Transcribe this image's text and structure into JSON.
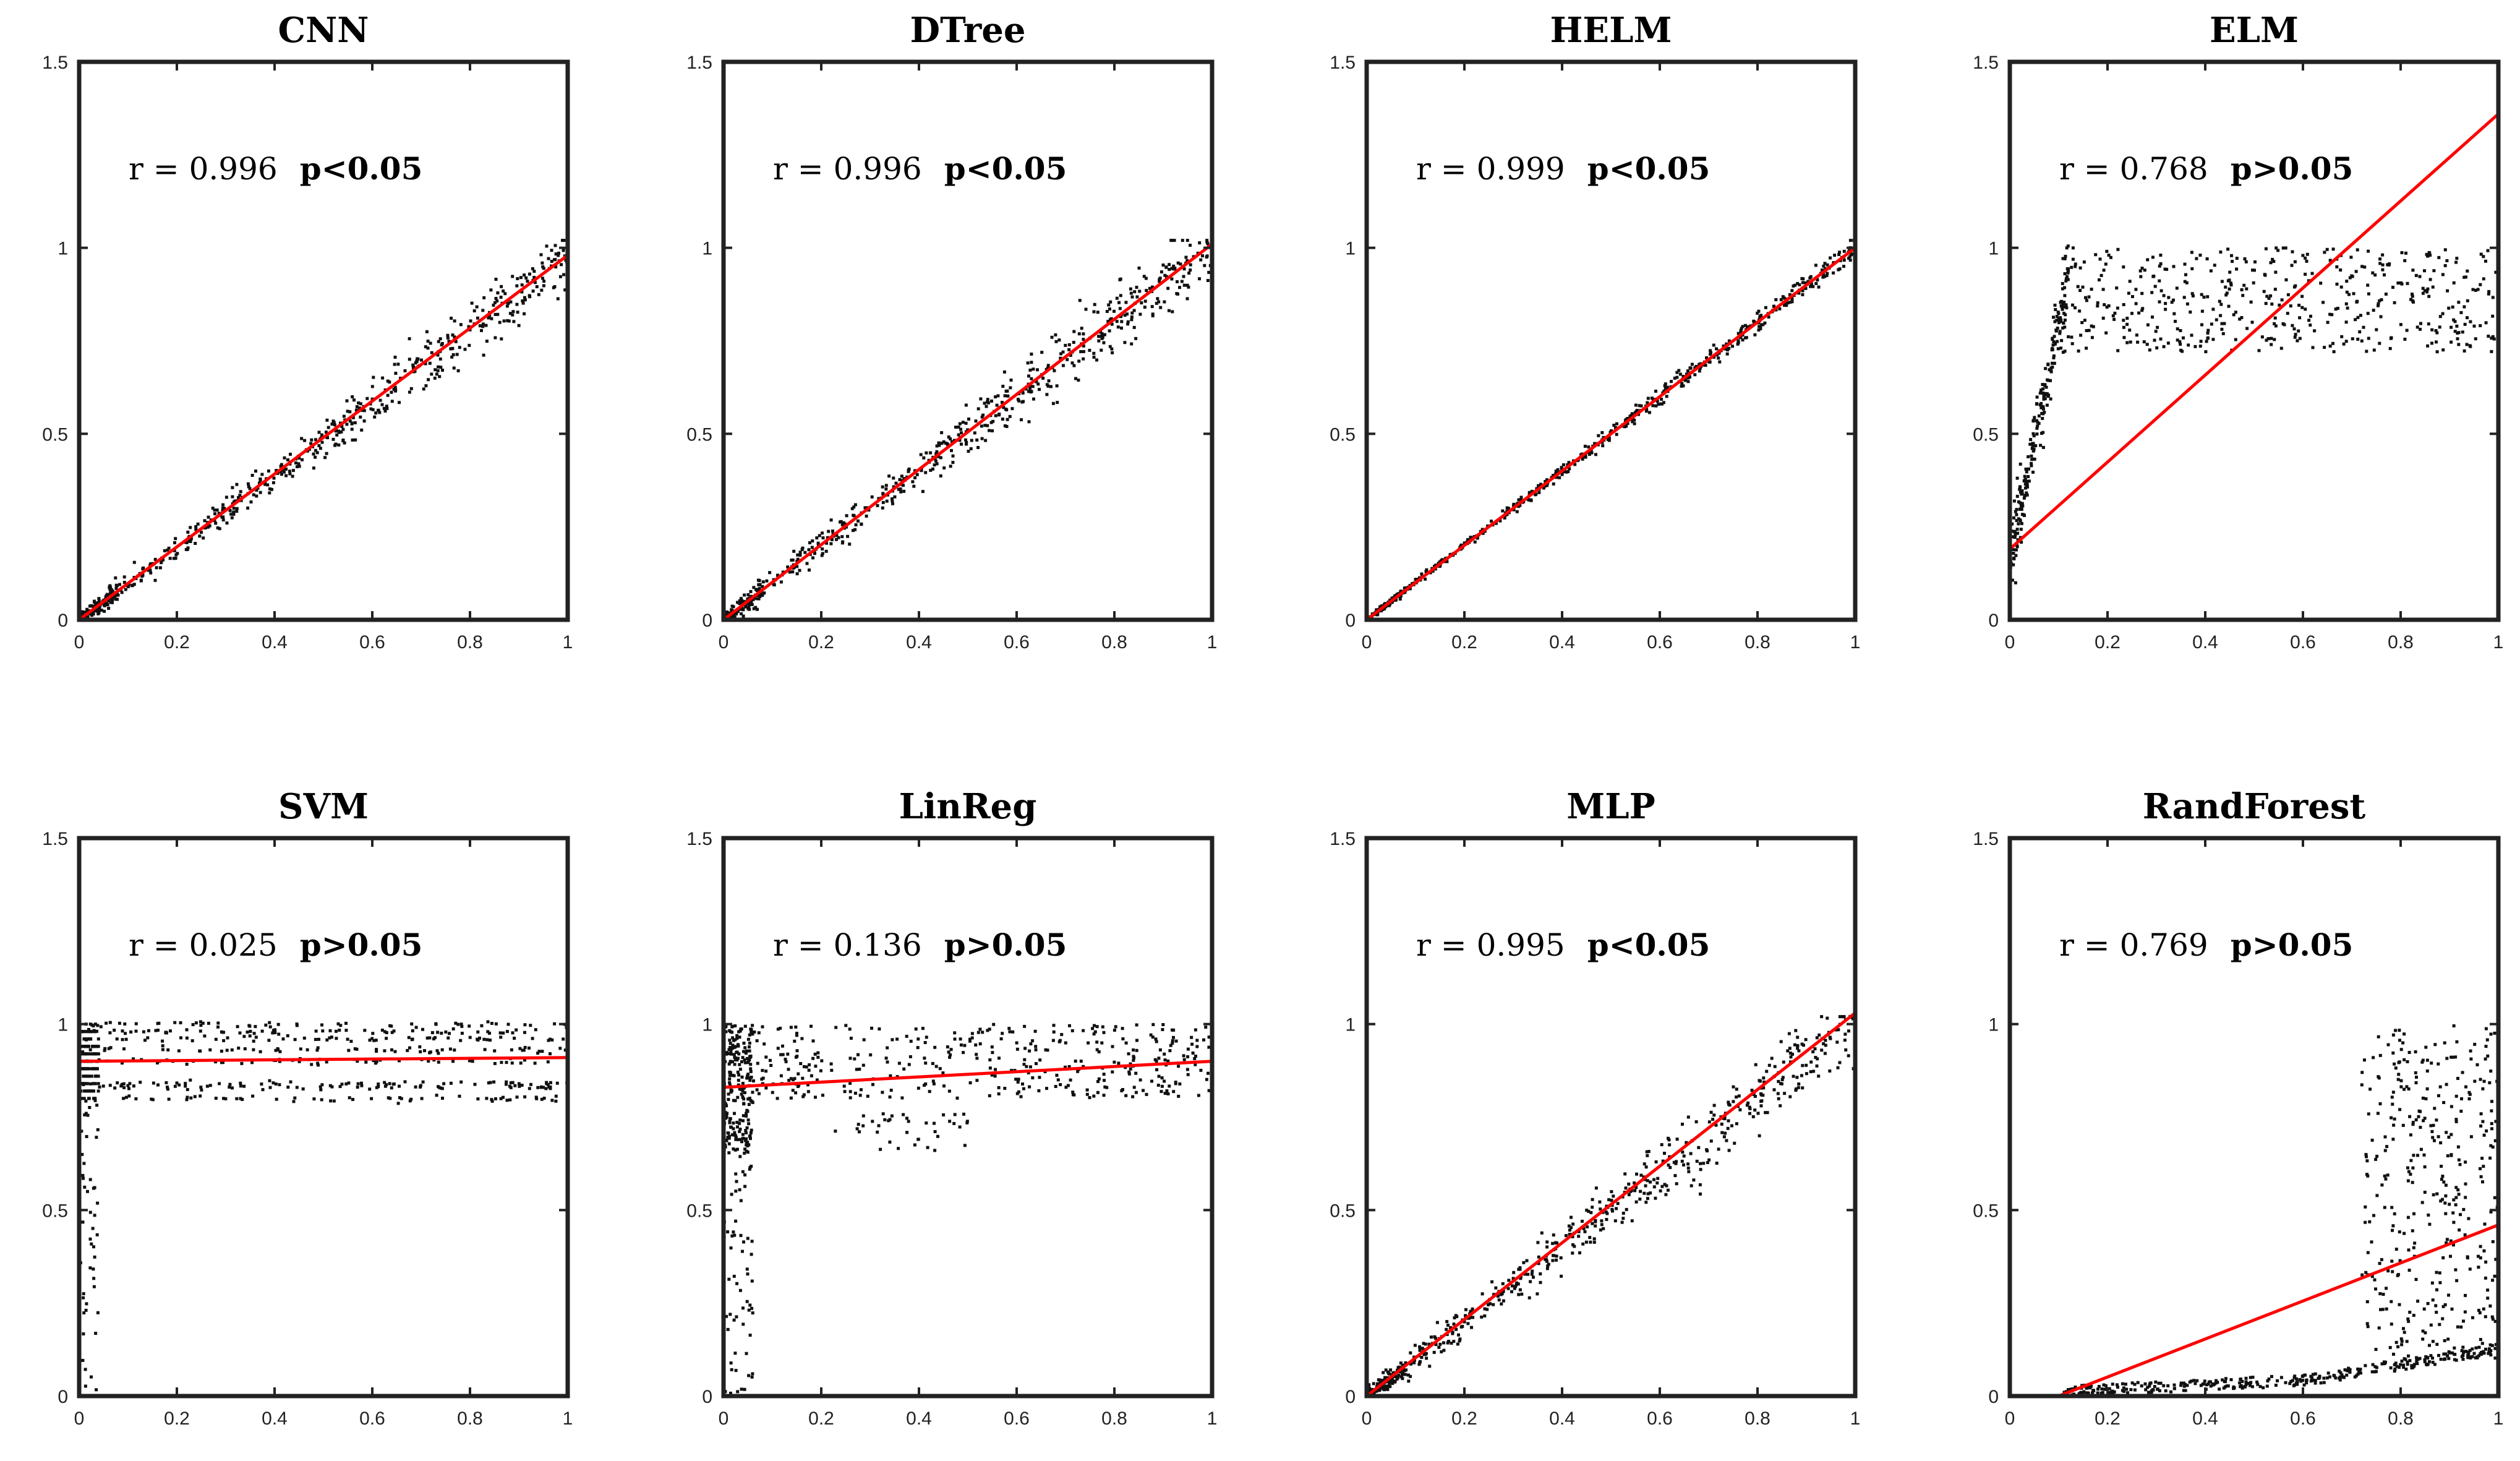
{
  "figure": {
    "domain": "Chart",
    "layout": "2 rows x 4 columns of scatter plots"
  },
  "chart_data": [
    {
      "id": "cnn",
      "type": "scatter",
      "title": "CNN",
      "r_label": "r = 0.996",
      "p_label": "p<0.05",
      "xlim": [
        0,
        1
      ],
      "ylim": [
        0,
        1.5
      ],
      "xticks": [
        "0",
        "0.2",
        "0.4",
        "0.6",
        "0.8",
        "1"
      ],
      "yticks": [
        "0",
        "0.5",
        "1",
        "1.5"
      ],
      "fit_line": {
        "x": [
          0,
          1
        ],
        "y": [
          0.0,
          0.98
        ]
      },
      "pattern": "linear",
      "slope": 0.97,
      "intercept": 0.0,
      "noise": 0.035,
      "n_points": 600,
      "seed": 11
    },
    {
      "id": "dtree",
      "type": "scatter",
      "title": "DTree",
      "r_label": "r = 0.996",
      "p_label": "p<0.05",
      "xlim": [
        0,
        1
      ],
      "ylim": [
        0,
        1.5
      ],
      "xticks": [
        "0",
        "0.2",
        "0.4",
        "0.6",
        "0.8",
        "1"
      ],
      "yticks": [
        "0",
        "0.5",
        "1",
        "1.5"
      ],
      "fit_line": {
        "x": [
          0,
          1
        ],
        "y": [
          0.0,
          1.01
        ]
      },
      "pattern": "linear",
      "slope": 1.0,
      "intercept": 0.0,
      "noise": 0.04,
      "n_points": 600,
      "seed": 23
    },
    {
      "id": "helm",
      "type": "scatter",
      "title": "HELM",
      "r_label": "r = 0.999",
      "p_label": "p<0.05",
      "xlim": [
        0,
        1
      ],
      "ylim": [
        0,
        1.5
      ],
      "xticks": [
        "0",
        "0.2",
        "0.4",
        "0.6",
        "0.8",
        "1"
      ],
      "yticks": [
        "0",
        "0.5",
        "1",
        "1.5"
      ],
      "fit_line": {
        "x": [
          0,
          1
        ],
        "y": [
          0.0,
          1.0
        ]
      },
      "pattern": "linear",
      "slope": 1.0,
      "intercept": 0.0,
      "noise": 0.012,
      "n_points": 600,
      "seed": 37
    },
    {
      "id": "elm",
      "type": "scatter",
      "title": "ELM",
      "r_label": "r = 0.768",
      "p_label": "p>0.05",
      "xlim": [
        0,
        1
      ],
      "ylim": [
        0,
        1.5
      ],
      "xticks": [
        "0",
        "0.2",
        "0.4",
        "0.6",
        "0.8",
        "1"
      ],
      "yticks": [
        "0",
        "0.5",
        "1",
        "1.5"
      ],
      "fit_line": {
        "x": [
          0,
          1
        ],
        "y": [
          0.19,
          1.36
        ]
      },
      "pattern": "elm",
      "n_points": 700,
      "seed": 41
    },
    {
      "id": "svm",
      "type": "scatter",
      "title": "SVM",
      "r_label": "r = 0.025",
      "p_label": "p>0.05",
      "xlim": [
        0,
        1
      ],
      "ylim": [
        0,
        1.5
      ],
      "xticks": [
        "0",
        "0.2",
        "0.4",
        "0.6",
        "0.8",
        "1"
      ],
      "yticks": [
        "0",
        "0.5",
        "1",
        "1.5"
      ],
      "fit_line": {
        "x": [
          0,
          1
        ],
        "y": [
          0.9,
          0.91
        ]
      },
      "pattern": "svm",
      "n_points": 700,
      "seed": 53
    },
    {
      "id": "linreg",
      "type": "scatter",
      "title": "LinReg",
      "r_label": "r = 0.136",
      "p_label": "p>0.05",
      "xlim": [
        0,
        1
      ],
      "ylim": [
        0,
        1.5
      ],
      "xticks": [
        "0",
        "0.2",
        "0.4",
        "0.6",
        "0.8",
        "1"
      ],
      "yticks": [
        "0",
        "0.5",
        "1",
        "1.5"
      ],
      "fit_line": {
        "x": [
          0,
          1
        ],
        "y": [
          0.83,
          0.9
        ]
      },
      "pattern": "linreg",
      "n_points": 700,
      "seed": 67
    },
    {
      "id": "mlp",
      "type": "scatter",
      "title": "MLP",
      "r_label": "r = 0.995",
      "p_label": "p<0.05",
      "xlim": [
        0,
        1
      ],
      "ylim": [
        0,
        1.5
      ],
      "xticks": [
        "0",
        "0.2",
        "0.4",
        "0.6",
        "0.8",
        "1"
      ],
      "yticks": [
        "0",
        "0.5",
        "1",
        "1.5"
      ],
      "fit_line": {
        "x": [
          0,
          1
        ],
        "y": [
          0.0,
          1.03
        ]
      },
      "pattern": "linear",
      "slope": 1.0,
      "intercept": 0.0,
      "noise": 0.045,
      "n_points": 600,
      "seed": 79
    },
    {
      "id": "randforest",
      "type": "scatter",
      "title": "RandForest",
      "r_label": "r = 0.769",
      "p_label": "p>0.05",
      "xlim": [
        0,
        1
      ],
      "ylim": [
        0,
        1.5
      ],
      "xticks": [
        "0",
        "0.2",
        "0.4",
        "0.6",
        "0.8",
        "1"
      ],
      "yticks": [
        "0",
        "0.5",
        "1",
        "1.5"
      ],
      "fit_line": {
        "x": [
          0.1,
          1
        ],
        "y": [
          0.0,
          0.46
        ]
      },
      "pattern": "randforest",
      "n_points": 700,
      "seed": 97
    }
  ]
}
